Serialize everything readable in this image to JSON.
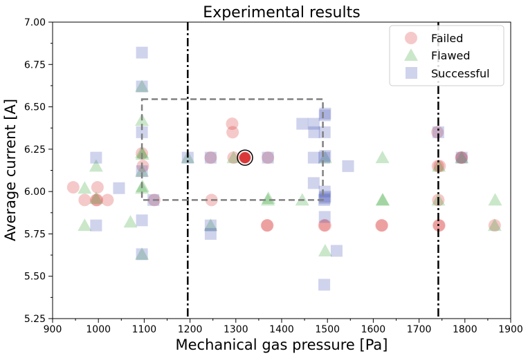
{
  "chart_data": {
    "type": "scatter",
    "title": "Experimental results",
    "xlabel": "Mechanical gas pressure [Pa]",
    "ylabel": "Average current [A]",
    "xlim": [
      900,
      1900
    ],
    "ylim": [
      5.25,
      7.0
    ],
    "xticks": [
      900,
      1000,
      1100,
      1200,
      1300,
      1400,
      1500,
      1600,
      1700,
      1800,
      1900
    ],
    "xtick_labels": [
      "900",
      "1000",
      "1100",
      "1200",
      "1300",
      "1400",
      "1500",
      "1600",
      "1700",
      "1800",
      "1900"
    ],
    "yticks": [
      5.25,
      5.5,
      5.75,
      6.0,
      6.25,
      6.5,
      6.75,
      7.0
    ],
    "ytick_labels": [
      "5.25",
      "5.50",
      "5.75",
      "6.00",
      "6.25",
      "6.50",
      "6.75",
      "7.00"
    ],
    "legend_position": "top-right",
    "vlines": [
      1195,
      1742
    ],
    "highlight_box": {
      "x": [
        1095,
        1490
      ],
      "y": [
        5.95,
        6.545
      ]
    },
    "highlight_point": {
      "x": 1320,
      "y": 6.2
    },
    "series": [
      {
        "name": "Failed",
        "marker": "circle",
        "color": "#d62728",
        "points": [
          [
            945,
            6.025
          ],
          [
            970,
            5.95
          ],
          [
            995,
            5.95
          ],
          [
            997,
            5.95
          ],
          [
            998,
            6.025
          ],
          [
            1020,
            5.95
          ],
          [
            1095,
            6.225
          ],
          [
            1097,
            6.15
          ],
          [
            1122,
            5.95
          ],
          [
            1245,
            6.2
          ],
          [
            1247,
            5.95
          ],
          [
            1292,
            6.4
          ],
          [
            1293,
            6.35
          ],
          [
            1295,
            6.2
          ],
          [
            1320,
            6.2
          ],
          [
            1368,
            5.8
          ],
          [
            1369,
            5.8
          ],
          [
            1370,
            6.2
          ],
          [
            1493,
            5.8
          ],
          [
            1495,
            5.8
          ],
          [
            1618,
            5.8
          ],
          [
            1619,
            5.8
          ],
          [
            1740,
            6.35
          ],
          [
            1741,
            6.15
          ],
          [
            1742,
            5.95
          ],
          [
            1743,
            5.8
          ],
          [
            1744,
            5.8
          ],
          [
            1745,
            6.15
          ],
          [
            1792,
            6.2
          ],
          [
            1793,
            6.2
          ],
          [
            1865,
            5.8
          ]
        ]
      },
      {
        "name": "Flawed",
        "marker": "triangle",
        "color": "#2ca02c",
        "points": [
          [
            970,
            5.8
          ],
          [
            970,
            6.02
          ],
          [
            995,
            5.96
          ],
          [
            995,
            6.15
          ],
          [
            1070,
            5.82
          ],
          [
            1095,
            5.63
          ],
          [
            1095,
            6.02
          ],
          [
            1096,
            6.03
          ],
          [
            1095,
            6.12
          ],
          [
            1096,
            6.22
          ],
          [
            1095,
            6.23
          ],
          [
            1095,
            6.42
          ],
          [
            1095,
            6.62
          ],
          [
            1195,
            6.2
          ],
          [
            1245,
            5.8
          ],
          [
            1295,
            6.2
          ],
          [
            1370,
            5.95
          ],
          [
            1371,
            5.96
          ],
          [
            1445,
            5.95
          ],
          [
            1495,
            5.65
          ],
          [
            1495,
            6.2
          ],
          [
            1620,
            5.95
          ],
          [
            1621,
            5.95
          ],
          [
            1620,
            6.2
          ],
          [
            1742,
            5.95
          ],
          [
            1743,
            6.15
          ],
          [
            1793,
            6.2
          ],
          [
            1865,
            5.8
          ],
          [
            1866,
            5.95
          ]
        ]
      },
      {
        "name": "Successful",
        "marker": "square",
        "color": "#3f4fb5",
        "points": [
          [
            995,
            5.8
          ],
          [
            995,
            6.2
          ],
          [
            1045,
            6.02
          ],
          [
            1095,
            5.63
          ],
          [
            1095,
            5.83
          ],
          [
            1095,
            6.12
          ],
          [
            1095,
            6.35
          ],
          [
            1095,
            6.62
          ],
          [
            1095,
            6.82
          ],
          [
            1120,
            5.95
          ],
          [
            1195,
            6.2
          ],
          [
            1245,
            5.75
          ],
          [
            1245,
            5.8
          ],
          [
            1245,
            6.2
          ],
          [
            1370,
            6.2
          ],
          [
            1445,
            6.4
          ],
          [
            1470,
            6.05
          ],
          [
            1470,
            6.2
          ],
          [
            1471,
            6.35
          ],
          [
            1470,
            6.4
          ],
          [
            1493,
            5.45
          ],
          [
            1494,
            5.85
          ],
          [
            1493,
            5.95
          ],
          [
            1494,
            5.96
          ],
          [
            1495,
            5.97
          ],
          [
            1494,
            6.0
          ],
          [
            1493,
            6.2
          ],
          [
            1495,
            6.21
          ],
          [
            1494,
            6.35
          ],
          [
            1494,
            6.45
          ],
          [
            1495,
            6.46
          ],
          [
            1520,
            5.65
          ],
          [
            1545,
            6.15
          ],
          [
            1742,
            6.35
          ],
          [
            1793,
            6.2
          ]
        ]
      }
    ]
  }
}
